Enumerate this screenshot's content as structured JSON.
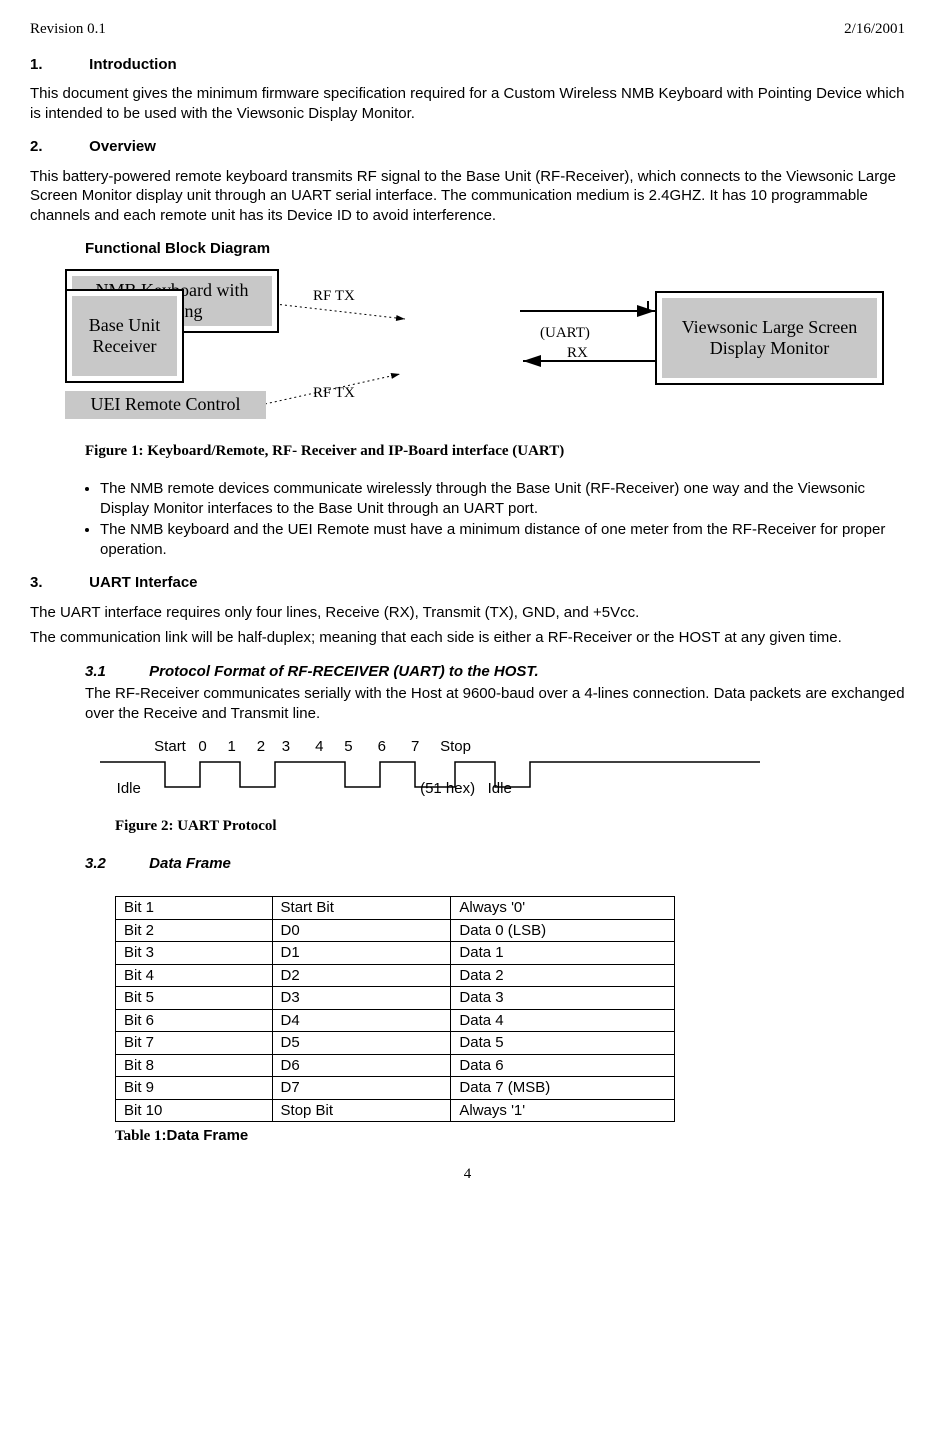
{
  "header": {
    "revision": "Revision 0.1",
    "date": "2/16/2001"
  },
  "sections": {
    "s1": {
      "num": "1.",
      "title": "Introduction"
    },
    "s2": {
      "num": "2.",
      "title": "Overview"
    },
    "s3": {
      "num": "3.",
      "title": "UART Interface"
    },
    "s3_1": {
      "num": "3.1",
      "title": "Protocol Format of RF-RECEIVER (UART) to the HOST."
    },
    "s3_2": {
      "num": "3.2",
      "title": "Data Frame"
    }
  },
  "paragraphs": {
    "intro": "This document gives the minimum firmware specification required for a Custom Wireless NMB Keyboard with Pointing Device  which is intended to be used with the Viewsonic Display Monitor.",
    "overview": "This battery-powered remote keyboard transmits RF signal to the Base Unit (RF-Receiver), which connects to the Viewsonic Large Screen Monitor display unit through an UART serial interface. The communication medium is 2.4GHZ.  It has 10 programmable channels and each remote unit has its Device ID to avoid interference.",
    "func_block": "Functional Block Diagram",
    "uart_p1": "The UART interface requires only four lines, Receive (RX), Transmit (TX), GND, and +5Vcc.",
    "uart_p2": "The communication link will be half-duplex; meaning that each side is either a RF-Receiver or the HOST at any given time.",
    "s3_1_body": "The RF-Receiver communicates serially with the Host at 9600-baud over a 4-lines connection. Data packets are exchanged over the Receive and Transmit line."
  },
  "bullets": {
    "b1": "The NMB remote devices communicate wirelessly through the Base Unit (RF-Receiver) one way and the Viewsonic Display Monitor interfaces to the Base Unit through an UART port.",
    "b2": "The NMB keyboard and the UEI  Remote must have a minimum distance of one meter from the RF-Receiver for proper operation."
  },
  "diagram": {
    "nmb": "NMB Keyboard with  Pointing",
    "uei": "UEI Remote Control",
    "base": "Base Unit Receiver",
    "viewsonic": "Viewsonic Large Screen Display Monitor",
    "rftx1": "RF TX",
    "rftx2": "RF TX",
    "uart": "(UART)",
    "rx": "RX",
    "colors": {
      "gray": "#c8c8c8",
      "line": "#000000"
    }
  },
  "figures": {
    "fig1": "Figure 1: Keyboard/Remote, RF- Receiver and IP-Board interface (UART)",
    "fig2": "Figure 2: UART Protocol"
  },
  "proto": {
    "top_labels": "             Start   0     1     2    3      4     5      6      7     Stop",
    "bottom_labels": "    Idle                                                                   (51 hex)   Idle"
  },
  "table": {
    "caption_prefix": "Table 1",
    "caption_suffix": ":Data Frame",
    "rows": [
      [
        "Bit 1",
        "Start Bit",
        "Always '0'"
      ],
      [
        "Bit 2",
        "D0",
        "Data 0 (LSB)"
      ],
      [
        "Bit 3",
        "D1",
        "Data 1"
      ],
      [
        "Bit 4",
        "D2",
        "Data 2"
      ],
      [
        "Bit 5",
        "D3",
        "Data 3"
      ],
      [
        "Bit 6",
        "D4",
        "Data 4"
      ],
      [
        "Bit 7",
        "D5",
        "Data 5"
      ],
      [
        "Bit 8",
        "D6",
        "Data 6"
      ],
      [
        "Bit 9",
        "D7",
        "Data 7 (MSB)"
      ],
      [
        "Bit 10",
        "Stop Bit",
        "Always '1'"
      ]
    ],
    "col_widths": [
      "28%",
      "32%",
      "40%"
    ]
  },
  "page_number": "4"
}
